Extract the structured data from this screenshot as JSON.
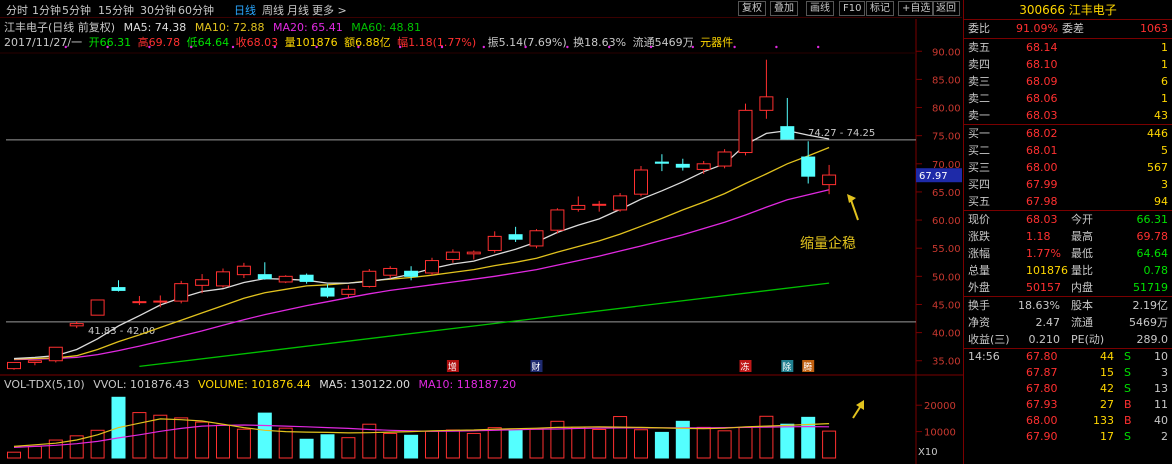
{
  "toolbar": {
    "periods": [
      "分时",
      "1分钟",
      "5分钟",
      "15分钟",
      "30分钟",
      "60分钟",
      "日线",
      "周线",
      "月线",
      "更多 >"
    ],
    "active_period": "日线",
    "tools": [
      "复权",
      "叠加",
      "画线",
      "F10",
      "标记",
      "+自选",
      "返回"
    ]
  },
  "header": {
    "stock_name": "江丰电子(日线 前复权)",
    "ma5": "MA5: 74.38",
    "ma10": "MA10: 72.88",
    "ma20": "MA20: 65.41",
    "ma60": "MA60: 48.81",
    "date": "2017/11/27/一",
    "open": "开66.31",
    "high": "高69.78",
    "low": "低64.64",
    "close": "收68.03",
    "volume": "量101876",
    "amount": "额6.88亿",
    "change": "幅1.18(1.77%)",
    "amplitude": "振5.14(7.69%)",
    "turnover": "换18.63%",
    "float": "流通5469万",
    "sector": "元器件"
  },
  "volume_header": {
    "name": "VOL-TDX(5,10)",
    "vvol": "VVOL: 101876.43",
    "volume": "VOLUME: 101876.44",
    "ma5": "MA5: 130122.00",
    "ma10": "MA10: 118187.20"
  },
  "annotations": {
    "high_label": "74.27 - 74.25",
    "low_label": "41.83 - 42.00",
    "note": "缩量企稳",
    "current_price_tag": "67.97",
    "vol_multiplier": "X10",
    "events": [
      "增",
      "财",
      "冻",
      "除",
      "腾"
    ]
  },
  "colors": {
    "up": "#ff3030",
    "down": "#54ffff",
    "ma5": "#dcdcdc",
    "ma10": "#e1c21e",
    "ma20": "#e029e0",
    "ma60": "#00c000",
    "grid": "#7a0000",
    "accent": "#ffd700"
  },
  "chart_data": {
    "type": "candlestick",
    "y_axis_ticks": [
      "90.00",
      "85.00",
      "80.00",
      "75.00",
      "70.00",
      "65.00",
      "60.00",
      "55.00",
      "50.00",
      "45.00",
      "40.00",
      "35.00"
    ],
    "ylim": [
      33,
      92
    ],
    "vol_axis_ticks": [
      "20000",
      "10000"
    ],
    "vol_ylim": [
      0,
      25000
    ],
    "candles": [
      {
        "o": 33.6,
        "h": 34.7,
        "l": 33.4,
        "c": 34.7
      },
      {
        "o": 34.7,
        "h": 35.0,
        "l": 34.2,
        "c": 35.0
      },
      {
        "o": 35.0,
        "h": 37.4,
        "l": 34.7,
        "c": 37.4
      },
      {
        "o": 41.2,
        "h": 42.0,
        "l": 40.8,
        "c": 41.6
      },
      {
        "o": 43.1,
        "h": 45.8,
        "l": 43.1,
        "c": 45.8
      },
      {
        "o": 48.0,
        "h": 49.3,
        "l": 47.3,
        "c": 47.5
      },
      {
        "o": 45.5,
        "h": 46.5,
        "l": 44.9,
        "c": 45.5
      },
      {
        "o": 45.6,
        "h": 46.6,
        "l": 44.5,
        "c": 45.6
      },
      {
        "o": 45.6,
        "h": 49.2,
        "l": 45.2,
        "c": 48.7
      },
      {
        "o": 48.4,
        "h": 50.4,
        "l": 47.0,
        "c": 49.4
      },
      {
        "o": 48.3,
        "h": 51.4,
        "l": 48.0,
        "c": 50.8
      },
      {
        "o": 50.3,
        "h": 52.4,
        "l": 49.7,
        "c": 51.8
      },
      {
        "o": 50.3,
        "h": 52.5,
        "l": 49.4,
        "c": 49.6
      },
      {
        "o": 49.0,
        "h": 50.2,
        "l": 48.8,
        "c": 50.0
      },
      {
        "o": 50.2,
        "h": 50.5,
        "l": 48.7,
        "c": 49.1
      },
      {
        "o": 47.9,
        "h": 48.6,
        "l": 46.2,
        "c": 46.5
      },
      {
        "o": 46.8,
        "h": 48.4,
        "l": 46.2,
        "c": 47.7
      },
      {
        "o": 48.2,
        "h": 51.3,
        "l": 48.0,
        "c": 50.9
      },
      {
        "o": 50.2,
        "h": 51.8,
        "l": 49.6,
        "c": 51.4
      },
      {
        "o": 50.9,
        "h": 51.8,
        "l": 49.3,
        "c": 50.0
      },
      {
        "o": 50.6,
        "h": 53.3,
        "l": 50.2,
        "c": 52.8
      },
      {
        "o": 53.0,
        "h": 54.8,
        "l": 52.4,
        "c": 54.3
      },
      {
        "o": 54.0,
        "h": 54.6,
        "l": 53.0,
        "c": 54.3
      },
      {
        "o": 54.6,
        "h": 58.0,
        "l": 54.2,
        "c": 57.1
      },
      {
        "o": 57.4,
        "h": 58.8,
        "l": 56.1,
        "c": 56.6
      },
      {
        "o": 55.4,
        "h": 58.4,
        "l": 55.0,
        "c": 58.1
      },
      {
        "o": 58.2,
        "h": 62.1,
        "l": 57.6,
        "c": 61.8
      },
      {
        "o": 61.9,
        "h": 64.2,
        "l": 61.5,
        "c": 62.6
      },
      {
        "o": 62.8,
        "h": 63.4,
        "l": 61.5,
        "c": 62.8
      },
      {
        "o": 61.8,
        "h": 64.8,
        "l": 61.5,
        "c": 64.3
      },
      {
        "o": 64.6,
        "h": 69.6,
        "l": 64.2,
        "c": 68.9
      },
      {
        "o": 70.3,
        "h": 71.7,
        "l": 68.7,
        "c": 70.1
      },
      {
        "o": 69.9,
        "h": 70.9,
        "l": 68.8,
        "c": 69.4
      },
      {
        "o": 69.0,
        "h": 70.5,
        "l": 68.2,
        "c": 70.0
      },
      {
        "o": 69.6,
        "h": 72.6,
        "l": 69.2,
        "c": 72.1
      },
      {
        "o": 72.0,
        "h": 80.7,
        "l": 71.5,
        "c": 79.5
      },
      {
        "o": 79.5,
        "h": 88.5,
        "l": 78.0,
        "c": 81.9
      },
      {
        "o": 76.6,
        "h": 81.7,
        "l": 74.3,
        "c": 74.4
      },
      {
        "o": 71.2,
        "h": 74.0,
        "l": 66.5,
        "c": 67.8
      },
      {
        "o": 66.3,
        "h": 69.8,
        "l": 64.6,
        "c": 68.0
      }
    ],
    "ma5": [
      35.4,
      35.6,
      35.9,
      37.0,
      38.9,
      41.2,
      43.0,
      44.9,
      46.2,
      47.3,
      47.8,
      48.9,
      49.6,
      49.5,
      49.3,
      48.8,
      48.8,
      49.1,
      49.6,
      50.4,
      51.4,
      52.2,
      52.7,
      53.8,
      54.8,
      56.1,
      57.8,
      59.1,
      60.2,
      61.9,
      63.7,
      65.2,
      66.8,
      68.6,
      70.0,
      73.4,
      75.4,
      75.9,
      75.1,
      74.4
    ],
    "ma10": [
      35.3,
      35.4,
      35.5,
      35.9,
      37.0,
      38.4,
      39.6,
      40.9,
      42.2,
      43.5,
      44.8,
      46.1,
      47.1,
      47.7,
      48.3,
      48.5,
      48.8,
      49.2,
      49.5,
      49.8,
      50.2,
      50.7,
      51.2,
      51.9,
      52.5,
      53.2,
      54.3,
      55.3,
      56.3,
      57.5,
      58.9,
      60.3,
      61.8,
      63.2,
      64.7,
      66.5,
      68.2,
      70.0,
      71.4,
      72.9
    ],
    "ma20": [
      35.2,
      35.3,
      35.4,
      35.6,
      36.1,
      36.8,
      37.6,
      38.5,
      39.4,
      40.3,
      41.3,
      42.3,
      43.2,
      44.0,
      44.8,
      45.5,
      46.2,
      46.9,
      47.5,
      48.0,
      48.5,
      49.0,
      49.5,
      50.0,
      50.6,
      51.2,
      52.0,
      52.8,
      53.6,
      54.5,
      55.4,
      56.4,
      57.4,
      58.5,
      59.6,
      60.9,
      62.3,
      63.6,
      64.5,
      65.4
    ],
    "ma60_range": {
      "start_index": 6,
      "start": 34.0,
      "end": 48.8
    },
    "volume_ma5": [
      4400,
      5000,
      5600,
      6800,
      8800,
      11500,
      13200,
      14800,
      14500,
      14000,
      12800,
      11500,
      10500,
      10000,
      9800,
      9700,
      9500,
      9600,
      9800,
      10000,
      10300,
      10500,
      10600,
      10900,
      11100,
      11300,
      11600,
      11700,
      11800,
      11700,
      11600,
      11400,
      11200,
      11100,
      11300,
      11800,
      12100,
      12400,
      12700,
      13012
    ],
    "volume_ma10": [
      4000,
      4400,
      4800,
      5400,
      6300,
      7600,
      8800,
      10100,
      11200,
      12100,
      12400,
      12500,
      12300,
      12100,
      11800,
      11500,
      11200,
      10800,
      10500,
      10300,
      10100,
      10200,
      10300,
      10500,
      10700,
      10900,
      11000,
      11200,
      11300,
      11400,
      11400,
      11400,
      11400,
      11400,
      11500,
      11600,
      11700,
      11800,
      11900,
      11819
    ],
    "volume": [
      2200,
      4400,
      6800,
      8400,
      10500,
      23000,
      17200,
      16200,
      15200,
      13600,
      12400,
      10900,
      17000,
      11300,
      7100,
      8800,
      7700,
      12800,
      9300,
      8600,
      10100,
      10600,
      9300,
      11500,
      10400,
      10900,
      13900,
      11700,
      10800,
      15700,
      10700,
      9700,
      13900,
      11600,
      10300,
      11600,
      15800,
      12800,
      15400,
      10188
    ]
  },
  "quote_panel": {
    "code_name": "300666 江丰电子",
    "ratio": {
      "label": "委比",
      "value": "91.09%",
      "diff_label": "委差",
      "diff": "1063"
    },
    "asks": [
      {
        "label": "卖五",
        "price": "68.14",
        "qty": "1"
      },
      {
        "label": "卖四",
        "price": "68.10",
        "qty": "1"
      },
      {
        "label": "卖三",
        "price": "68.09",
        "qty": "6"
      },
      {
        "label": "卖二",
        "price": "68.06",
        "qty": "1"
      },
      {
        "label": "卖一",
        "price": "68.03",
        "qty": "43"
      }
    ],
    "bids": [
      {
        "label": "买一",
        "price": "68.02",
        "qty": "446"
      },
      {
        "label": "买二",
        "price": "68.01",
        "qty": "5"
      },
      {
        "label": "买三",
        "price": "68.00",
        "qty": "567"
      },
      {
        "label": "买四",
        "price": "67.99",
        "qty": "3"
      },
      {
        "label": "买五",
        "price": "67.98",
        "qty": "94"
      }
    ],
    "stats": [
      {
        "l1": "现价",
        "v1": "68.03",
        "c1": "#ff3030",
        "l2": "今开",
        "v2": "66.31",
        "c2": "#00e000"
      },
      {
        "l1": "涨跌",
        "v1": "1.18",
        "c1": "#ff3030",
        "l2": "最高",
        "v2": "69.78",
        "c2": "#ff3030"
      },
      {
        "l1": "涨幅",
        "v1": "1.77%",
        "c1": "#ff3030",
        "l2": "最低",
        "v2": "64.64",
        "c2": "#00e000"
      },
      {
        "l1": "总量",
        "v1": "101876",
        "c1": "#ffd700",
        "l2": "量比",
        "v2": "0.78",
        "c2": "#00e000"
      },
      {
        "l1": "外盘",
        "v1": "50157",
        "c1": "#ff3030",
        "l2": "内盘",
        "v2": "51719",
        "c2": "#00e000"
      }
    ],
    "stats2": [
      {
        "l1": "换手",
        "v1": "18.63%",
        "l2": "股本",
        "v2": "2.19亿"
      },
      {
        "l1": "净资",
        "v1": "2.47",
        "l2": "流通",
        "v2": "5469万"
      },
      {
        "l1": "收益(三)",
        "v1": "0.210",
        "l2": "PE(动)",
        "v2": "289.0"
      }
    ],
    "ticks": [
      {
        "time": "14:56",
        "price": "67.80",
        "vol": "44",
        "side": "S",
        "n": "10"
      },
      {
        "time": "",
        "price": "67.87",
        "vol": "15",
        "side": "S",
        "n": "3"
      },
      {
        "time": "",
        "price": "67.80",
        "vol": "42",
        "side": "S",
        "n": "13"
      },
      {
        "time": "",
        "price": "67.93",
        "vol": "27",
        "side": "B",
        "n": "11"
      },
      {
        "time": "",
        "price": "68.00",
        "vol": "133",
        "side": "B",
        "n": "40"
      },
      {
        "time": "",
        "price": "67.90",
        "vol": "17",
        "side": "S",
        "n": "2"
      }
    ]
  }
}
